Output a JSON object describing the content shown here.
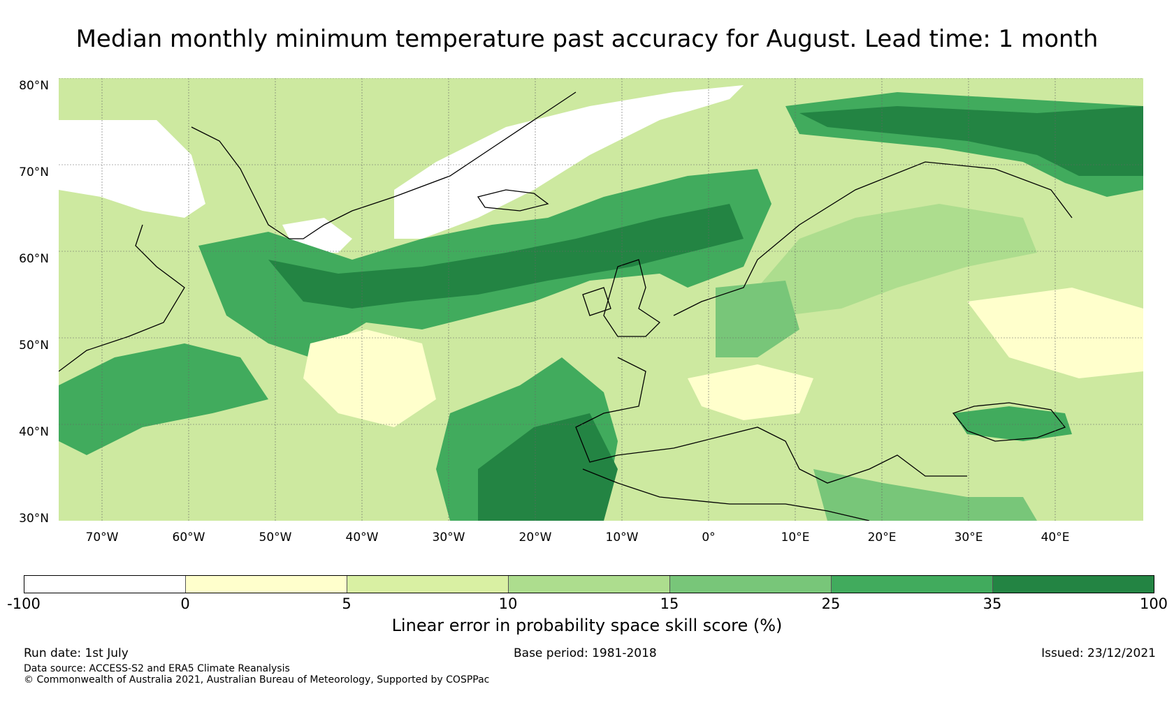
{
  "title": "Median monthly minimum temperature past accuracy for August. Lead time: 1 month",
  "map": {
    "extent": {
      "lon": [
        -75,
        50
      ],
      "lat": [
        30,
        81
      ]
    },
    "lat_labels": [
      "80°N",
      "70°N",
      "60°N",
      "50°N",
      "40°N",
      "30°N"
    ],
    "lon_labels": [
      "70°W",
      "60°W",
      "50°W",
      "40°W",
      "30°W",
      "20°W",
      "10°W",
      "0°",
      "10°E",
      "20°E",
      "30°E",
      "40°E"
    ]
  },
  "colorbar": {
    "label": "Linear error in probability space skill score (%)",
    "ticks": [
      "-100",
      "0",
      "5",
      "10",
      "15",
      "25",
      "35",
      "100"
    ],
    "colors": [
      "#ffffff",
      "#ffffcc",
      "#d9f0a3",
      "#addd8e",
      "#78c679",
      "#41ab5d",
      "#238443"
    ]
  },
  "footer": {
    "run_date": "Run date: 1st July",
    "base_period": "Base period: 1981-2018",
    "issued": "Issued: 23/12/2021",
    "data_source": "Data source: ACCESS-S2 and ERA5 Climate Reanalysis",
    "copyright": "© Commonwealth of Australia 2021, Australian Bureau of Meteorology, Supported by COSPPac"
  }
}
